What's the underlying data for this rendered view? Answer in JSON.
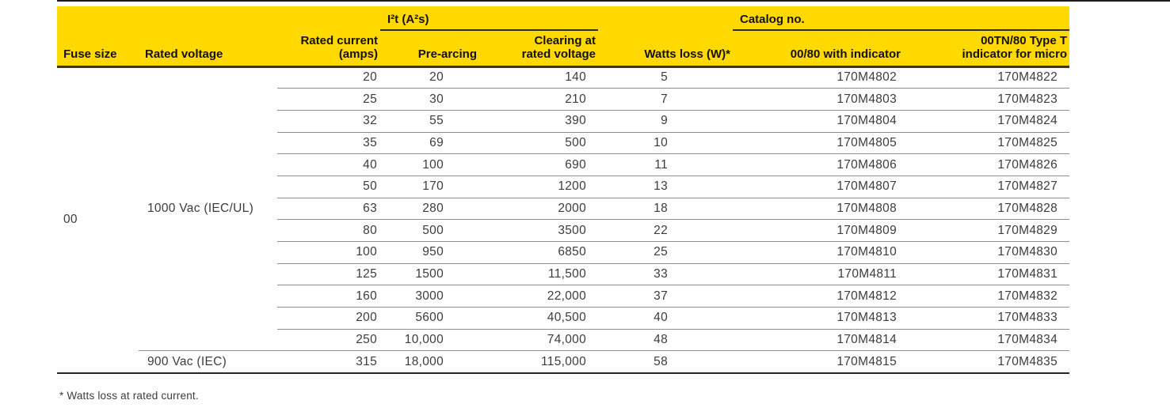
{
  "document": {
    "footnote": "* Watts loss at rated current."
  },
  "table": {
    "group_headers": {
      "i2t": "I²t (A²s)",
      "catalog": "Catalog no."
    },
    "columns": {
      "fuse_size": "Fuse size",
      "rated_voltage": "Rated voltage",
      "rated_current_lines": [
        "Rated current",
        "(amps)"
      ],
      "pre_arcing": "Pre-arcing",
      "clearing_lines": [
        "Clearing at",
        "rated voltage"
      ],
      "watts_loss": "Watts loss (W)*",
      "catalog_indicator": "00/80 with indicator",
      "catalog_type_t_lines": [
        "00TN/80 Type T",
        "indicator for micro"
      ]
    },
    "fuse_size_value": "00",
    "voltage_groups": [
      {
        "label": "1000 Vac (IEC/UL)",
        "row_count": 13
      },
      {
        "label": "900 Vac (IEC)",
        "row_count": 1
      }
    ],
    "rows": [
      [
        "20",
        "20",
        "140",
        "5",
        "170M4802",
        "170M4822"
      ],
      [
        "25",
        "30",
        "210",
        "7",
        "170M4803",
        "170M4823"
      ],
      [
        "32",
        "55",
        "390",
        "9",
        "170M4804",
        "170M4824"
      ],
      [
        "35",
        "69",
        "500",
        "10",
        "170M4805",
        "170M4825"
      ],
      [
        "40",
        "100",
        "690",
        "11",
        "170M4806",
        "170M4826"
      ],
      [
        "50",
        "170",
        "1200",
        "13",
        "170M4807",
        "170M4827"
      ],
      [
        "63",
        "280",
        "2000",
        "18",
        "170M4808",
        "170M4828"
      ],
      [
        "80",
        "500",
        "3500",
        "22",
        "170M4809",
        "170M4829"
      ],
      [
        "100",
        "950",
        "6850",
        "25",
        "170M4810",
        "170M4830"
      ],
      [
        "125",
        "1500",
        "11,500",
        "33",
        "170M4811",
        "170M4831"
      ],
      [
        "160",
        "3000",
        "22,000",
        "37",
        "170M4812",
        "170M4832"
      ],
      [
        "200",
        "5600",
        "40,500",
        "40",
        "170M4813",
        "170M4833"
      ],
      [
        "250",
        "10,000",
        "74,000",
        "48",
        "170M4814",
        "170M4834"
      ],
      [
        "315",
        "18,000",
        "115,000",
        "58",
        "170M4815",
        "170M4835"
      ]
    ],
    "colors": {
      "header_yellow": "#FFD900",
      "header_underline": "#2d2a08",
      "header_bottom_border": "#3a3416",
      "row_separator": "#8f8f8f",
      "table_bottom_border": "#262626"
    }
  }
}
